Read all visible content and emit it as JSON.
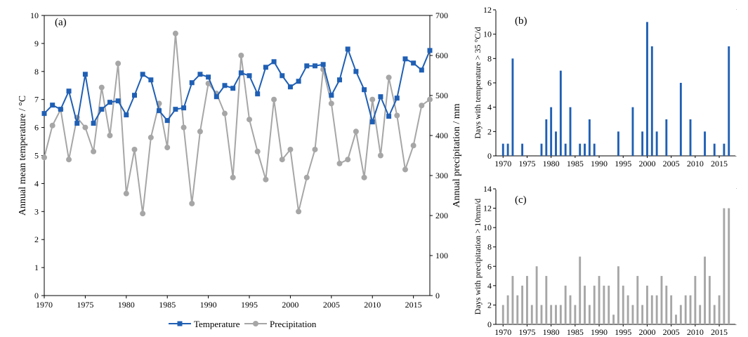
{
  "colors": {
    "temperature": "#1f5fb4",
    "precipitation": "#a6a6a6",
    "bars_b": "#1f5fb4",
    "bars_c": "#a6a6a6",
    "axis": "#000000"
  },
  "chart_data": [
    {
      "panel": "(a)",
      "type": "line",
      "ylabel": "Annual mean temperature / °C",
      "y2label": "Annual precipitation / mm",
      "ylim": [
        0,
        10
      ],
      "y2lim": [
        0,
        700
      ],
      "yticks": [
        0,
        1,
        2,
        3,
        4,
        5,
        6,
        7,
        8,
        9,
        10
      ],
      "y2ticks": [
        0,
        100,
        200,
        300,
        400,
        500,
        600,
        700
      ],
      "xlim": [
        1970,
        2017
      ],
      "xticks": [
        1970,
        1975,
        1980,
        1985,
        1990,
        1995,
        2000,
        2005,
        2010,
        2015
      ],
      "legend_position": "bottom-center",
      "x": [
        1970,
        1971,
        1972,
        1973,
        1974,
        1975,
        1976,
        1977,
        1978,
        1979,
        1980,
        1981,
        1982,
        1983,
        1984,
        1985,
        1986,
        1987,
        1988,
        1989,
        1990,
        1991,
        1992,
        1993,
        1994,
        1995,
        1996,
        1997,
        1998,
        1999,
        2000,
        2001,
        2002,
        2003,
        2004,
        2005,
        2006,
        2007,
        2008,
        2009,
        2010,
        2011,
        2012,
        2013,
        2014,
        2015,
        2016,
        2017
      ],
      "series": [
        {
          "name": "Temperature",
          "axis": "left",
          "marker": "square",
          "values": [
            6.5,
            6.8,
            6.65,
            7.3,
            6.15,
            7.9,
            6.15,
            6.65,
            6.9,
            6.95,
            6.45,
            7.15,
            7.9,
            7.7,
            6.6,
            6.25,
            6.65,
            6.7,
            7.6,
            7.9,
            7.8,
            7.1,
            7.5,
            7.4,
            7.95,
            7.85,
            7.2,
            8.15,
            8.35,
            7.85,
            7.45,
            7.65,
            8.2,
            8.2,
            8.25,
            7.15,
            7.7,
            8.8,
            8.0,
            7.35,
            6.2,
            7.1,
            6.4,
            7.05,
            8.45,
            8.3,
            8.05,
            8.75
          ]
        },
        {
          "name": "Precipitation",
          "axis": "right",
          "marker": "circle",
          "values": [
            345,
            425,
            465,
            340,
            445,
            420,
            360,
            520,
            400,
            580,
            255,
            365,
            205,
            395,
            480,
            370,
            655,
            420,
            230,
            410,
            530,
            505,
            455,
            295,
            600,
            440,
            360,
            290,
            490,
            340,
            365,
            210,
            295,
            365,
            565,
            480,
            330,
            340,
            410,
            295,
            490,
            350,
            545,
            450,
            315,
            375,
            475,
            490
          ]
        }
      ]
    },
    {
      "panel": "(b)",
      "type": "bar",
      "ylabel": "Days with temperature > 35 °C/d",
      "ylim": [
        0,
        12
      ],
      "yticks": [
        0,
        2,
        4,
        6,
        8,
        10,
        12
      ],
      "xticks": [
        1970,
        1975,
        1980,
        1985,
        1990,
        1995,
        2000,
        2005,
        2010,
        2015
      ],
      "x": [
        1970,
        1971,
        1972,
        1973,
        1974,
        1975,
        1976,
        1977,
        1978,
        1979,
        1980,
        1981,
        1982,
        1983,
        1984,
        1985,
        1986,
        1987,
        1988,
        1989,
        1990,
        1991,
        1992,
        1993,
        1994,
        1995,
        1996,
        1997,
        1998,
        1999,
        2000,
        2001,
        2002,
        2003,
        2004,
        2005,
        2006,
        2007,
        2008,
        2009,
        2010,
        2011,
        2012,
        2013,
        2014,
        2015,
        2016,
        2017
      ],
      "values": [
        1,
        1,
        8,
        0,
        1,
        0,
        0,
        0,
        1,
        3,
        4,
        2,
        7,
        1,
        4,
        0,
        1,
        1,
        3,
        1,
        0,
        0,
        0,
        0,
        2,
        0,
        0,
        4,
        0,
        2,
        11,
        9,
        2,
        0,
        3,
        0,
        0,
        6,
        0,
        3,
        0,
        0,
        2,
        0,
        1,
        0,
        1,
        9
      ]
    },
    {
      "panel": "(c)",
      "type": "bar",
      "ylabel": "Days with precipitation > 10mm/d",
      "ylim": [
        0,
        14
      ],
      "yticks": [
        0,
        2,
        4,
        6,
        8,
        10,
        12,
        14
      ],
      "xticks": [
        1970,
        1975,
        1980,
        1985,
        1990,
        1995,
        2000,
        2005,
        2010,
        2015
      ],
      "x": [
        1970,
        1971,
        1972,
        1973,
        1974,
        1975,
        1976,
        1977,
        1978,
        1979,
        1980,
        1981,
        1982,
        1983,
        1984,
        1985,
        1986,
        1987,
        1988,
        1989,
        1990,
        1991,
        1992,
        1993,
        1994,
        1995,
        1996,
        1997,
        1998,
        1999,
        2000,
        2001,
        2002,
        2003,
        2004,
        2005,
        2006,
        2007,
        2008,
        2009,
        2010,
        2011,
        2012,
        2013,
        2014,
        2015,
        2016,
        2017
      ],
      "values": [
        2,
        3,
        5,
        3,
        4,
        5,
        2,
        6,
        2,
        5,
        2,
        2,
        2,
        4,
        3,
        2,
        7,
        4,
        2,
        4,
        5,
        4,
        4,
        1,
        6,
        4,
        3,
        2,
        5,
        2,
        4,
        3,
        3,
        5,
        4,
        3,
        1,
        2,
        3,
        3,
        5,
        2,
        7,
        5,
        2,
        3,
        12,
        12
      ]
    }
  ]
}
